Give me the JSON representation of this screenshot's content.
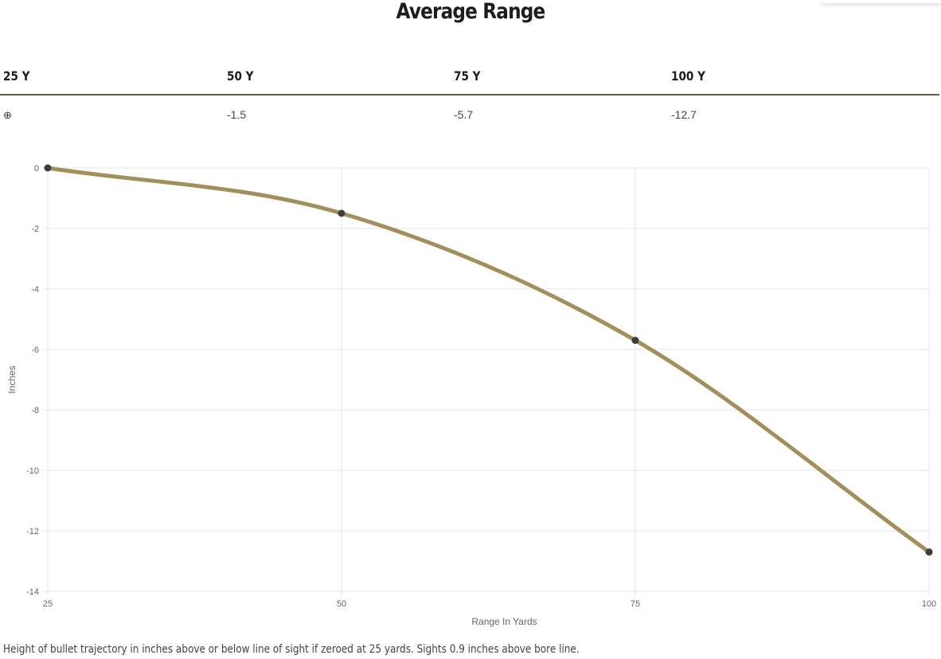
{
  "title": "Average Range",
  "table": {
    "headers": [
      "25 Y",
      "50 Y",
      "75 Y",
      "100 Y"
    ],
    "row_icon": "crosshair-icon",
    "row_icon_glyph": "⊕",
    "values": [
      "",
      "-1.5",
      "-5.7",
      "-12.7"
    ]
  },
  "caption": "Height of bullet trajectory in inches above or below line of sight if zeroed at 25 yards. Sights 0.9 inches above bore line.",
  "chart_data": {
    "type": "line",
    "x": [
      25,
      50,
      75,
      100
    ],
    "series": [
      {
        "values": [
          0,
          -1.5,
          -5.7,
          -12.7
        ],
        "color": "#a38f5c"
      }
    ],
    "xlabel": "Range In Yards",
    "ylabel": "Inches",
    "xlim": [
      25,
      100
    ],
    "ylim": [
      -14,
      0
    ],
    "xticks": [
      "25",
      "50",
      "75",
      "100"
    ],
    "yticks": [
      "0",
      "-2",
      "-4",
      "-6",
      "-8",
      "-10",
      "-12",
      "-14"
    ],
    "grid": true,
    "point_color": "#3d3d3d",
    "grid_color": "#e4e4e4"
  }
}
